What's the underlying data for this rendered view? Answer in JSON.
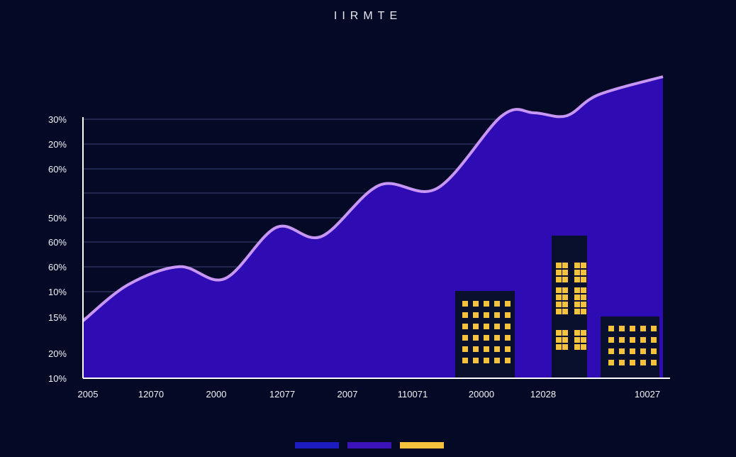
{
  "chart_data": {
    "type": "area",
    "title": "IIRMTE",
    "y_tick_labels": [
      "30%",
      "20%",
      "60%",
      "",
      "50%",
      "60%",
      "60%",
      "10%",
      "15%",
      "20%",
      "10%"
    ],
    "x_tick_labels": [
      "2005",
      "12070",
      "2000",
      "12077",
      "2007",
      "110071",
      "20000",
      "12028",
      "10027"
    ],
    "y_range": [
      0,
      100
    ],
    "grid": true,
    "series": [
      {
        "values": [
          19,
          31,
          37,
          33,
          50,
          47,
          64,
          63,
          87,
          88,
          87,
          94,
          100
        ],
        "x_positions": [
          0,
          0.7,
          1.5,
          2.2,
          3.0,
          3.7,
          4.6,
          5.5,
          6.5,
          7.0,
          7.5,
          8.0,
          9.0
        ]
      }
    ],
    "decorations": {
      "buildings": [
        {
          "name": "building-left",
          "window_rows": 6,
          "window_cols": 5
        },
        {
          "name": "building-tall",
          "window_groups": 3
        },
        {
          "name": "building-right",
          "window_rows": 4,
          "window_cols": 5
        }
      ]
    },
    "colors": {
      "background": "#040a26",
      "area_fill": "#2e0bb2",
      "line": "#c896f5",
      "building": "#08102e",
      "window": "#f5c23e",
      "legend": [
        "#1d1cc0",
        "#3c13b8",
        "#f5c23e"
      ]
    }
  }
}
